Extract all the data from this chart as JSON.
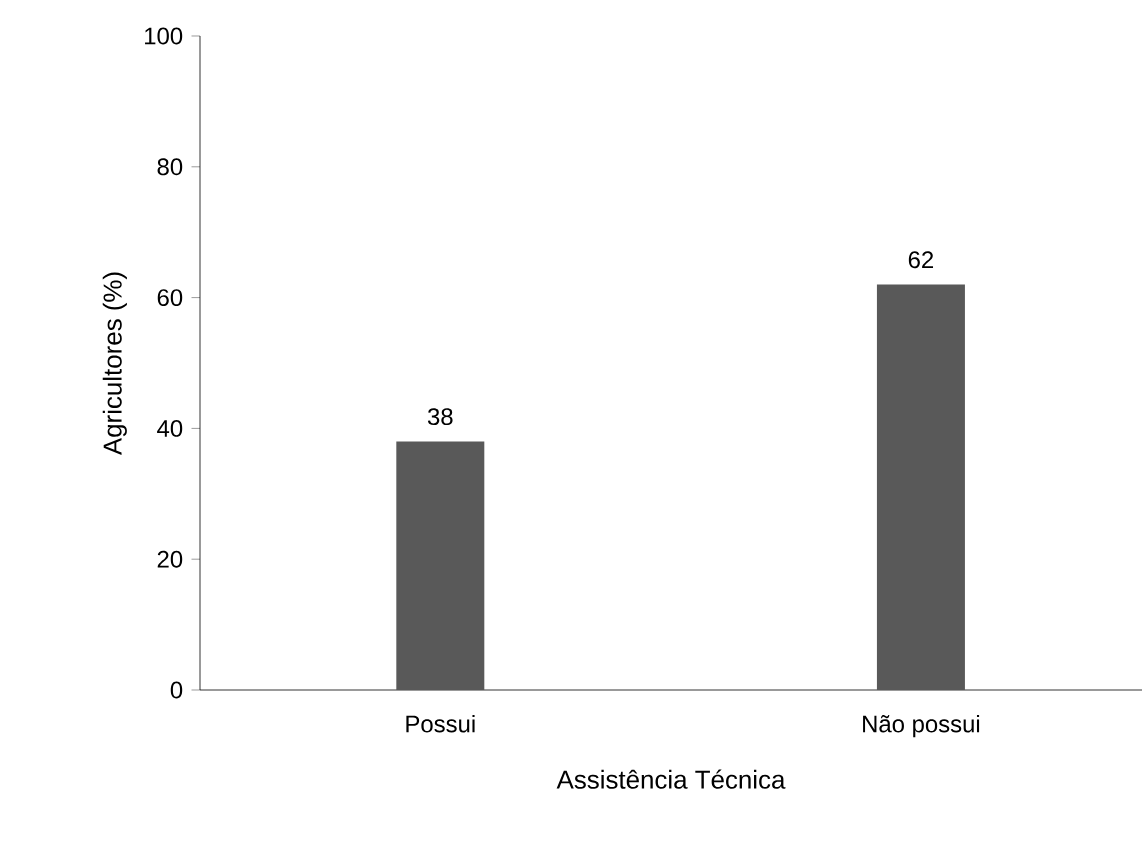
{
  "chart_data": {
    "type": "bar",
    "xlabel": "Assistência Técnica",
    "ylabel": "Agricultores  (%)",
    "categories": [
      "Possui",
      "Não possui"
    ],
    "values": [
      38,
      62
    ],
    "color": "#595959",
    "ylim": [
      0,
      100
    ],
    "yticks": [
      0,
      20,
      40,
      60,
      80,
      100
    ],
    "data_labels": true,
    "grid": false
  }
}
